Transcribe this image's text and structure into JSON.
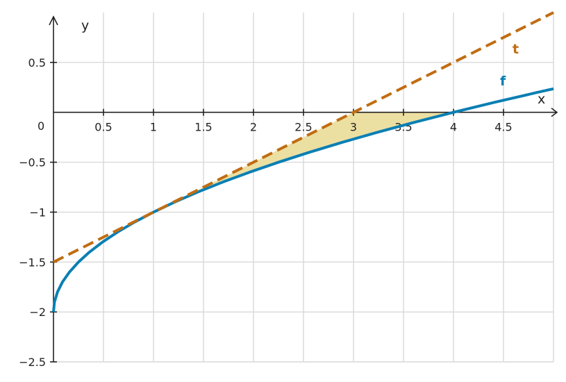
{
  "chart_data": {
    "type": "line",
    "title": "",
    "xlabel": "x",
    "ylabel": "y",
    "origin_label": "0",
    "xlim": [
      0,
      5
    ],
    "ylim": [
      -2.5,
      1
    ],
    "grid": true,
    "x_ticks": [
      {
        "value": 0.5,
        "label": "0.5"
      },
      {
        "value": 1,
        "label": "1"
      },
      {
        "value": 1.5,
        "label": "1.5"
      },
      {
        "value": 2,
        "label": "2"
      },
      {
        "value": 2.5,
        "label": "2.5"
      },
      {
        "value": 3,
        "label": "3"
      },
      {
        "value": 3.5,
        "label": "3.5"
      },
      {
        "value": 4,
        "label": "4"
      },
      {
        "value": 4.5,
        "label": "4.5"
      }
    ],
    "y_ticks": [
      {
        "value": 0.5,
        "label": "0.5"
      },
      {
        "value": -0.5,
        "label": "−0.5"
      },
      {
        "value": -1,
        "label": "−1"
      },
      {
        "value": -1.5,
        "label": "−1.5"
      },
      {
        "value": -2,
        "label": "−2"
      },
      {
        "value": -2.5,
        "label": "−2.5"
      }
    ],
    "series": [
      {
        "name": "f",
        "color": "#0a7fb3",
        "style": "solid",
        "points": [
          [
            0,
            -2
          ],
          [
            0.01,
            -1.9
          ],
          [
            0.04,
            -1.8
          ],
          [
            0.09,
            -1.7
          ],
          [
            0.16,
            -1.6
          ],
          [
            0.25,
            -1.5
          ],
          [
            0.36,
            -1.4
          ],
          [
            0.49,
            -1.3
          ],
          [
            0.64,
            -1.2
          ],
          [
            0.81,
            -1.1
          ],
          [
            1,
            -1
          ],
          [
            1.21,
            -0.9
          ],
          [
            1.44,
            -0.8
          ],
          [
            1.69,
            -0.7
          ],
          [
            1.96,
            -0.6
          ],
          [
            2.25,
            -0.5
          ],
          [
            2.56,
            -0.4
          ],
          [
            2.89,
            -0.3
          ],
          [
            3.24,
            -0.2
          ],
          [
            3.61,
            -0.1
          ],
          [
            4,
            0
          ],
          [
            4.41,
            0.1
          ],
          [
            4.84,
            0.2
          ],
          [
            5,
            0.236
          ]
        ]
      },
      {
        "name": "t",
        "color": "#c06d12",
        "style": "dashed",
        "points": [
          [
            0,
            -1.5
          ],
          [
            5,
            1
          ]
        ]
      }
    ],
    "shaded_region": {
      "color": "#ecdfa2",
      "boundary_points": [
        [
          1,
          -1
        ],
        [
          3,
          0
        ],
        [
          4,
          0
        ],
        [
          3.61,
          -0.1
        ],
        [
          3.24,
          -0.2
        ],
        [
          2.89,
          -0.3
        ],
        [
          2.56,
          -0.4
        ],
        [
          2.25,
          -0.5
        ],
        [
          1.96,
          -0.6
        ],
        [
          1.69,
          -0.7
        ],
        [
          1.44,
          -0.8
        ],
        [
          1.21,
          -0.9
        ],
        [
          1,
          -1
        ]
      ]
    }
  }
}
